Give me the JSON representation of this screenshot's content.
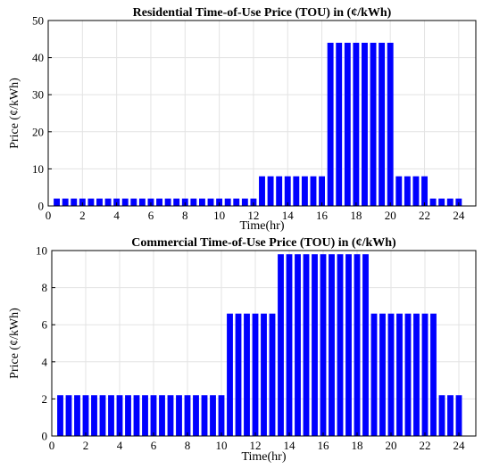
{
  "chart_data": [
    {
      "type": "bar",
      "title": "Residential Time-of-Use Price (TOU) in (¢/kWh)",
      "xlabel": "Time(hr)",
      "ylabel": "Price (¢/kWh)",
      "xlim": [
        0,
        25
      ],
      "ylim": [
        0,
        50
      ],
      "xticks": [
        0,
        2,
        4,
        6,
        8,
        10,
        12,
        14,
        16,
        18,
        20,
        22,
        24
      ],
      "yticks": [
        0,
        10,
        20,
        30,
        40,
        50
      ],
      "grid": true,
      "bar_color": "#0000ff",
      "segments": [
        {
          "from": 0.5,
          "to": 12,
          "value": 2
        },
        {
          "from": 12.5,
          "to": 16,
          "value": 8
        },
        {
          "from": 16.5,
          "to": 20,
          "value": 44
        },
        {
          "from": 20.5,
          "to": 22,
          "value": 8
        },
        {
          "from": 22.5,
          "to": 24,
          "value": 2
        }
      ]
    },
    {
      "type": "bar",
      "title": "Commercial Time-of-Use Price (TOU) in (¢/kWh)",
      "xlabel": "Time(hr)",
      "ylabel": "Price (¢/kWh)",
      "xlim": [
        0,
        25
      ],
      "ylim": [
        0,
        10
      ],
      "xticks": [
        0,
        2,
        4,
        6,
        8,
        10,
        12,
        14,
        16,
        18,
        20,
        22,
        24
      ],
      "yticks": [
        0,
        2,
        4,
        6,
        8,
        10
      ],
      "grid": true,
      "bar_color": "#0000ff",
      "segments": [
        {
          "from": 0.5,
          "to": 10,
          "value": 2.2
        },
        {
          "from": 10.5,
          "to": 13,
          "value": 6.6
        },
        {
          "from": 13.5,
          "to": 18.5,
          "value": 9.8
        },
        {
          "from": 19,
          "to": 22.5,
          "value": 6.6
        },
        {
          "from": 23,
          "to": 24,
          "value": 2.2
        }
      ]
    }
  ]
}
